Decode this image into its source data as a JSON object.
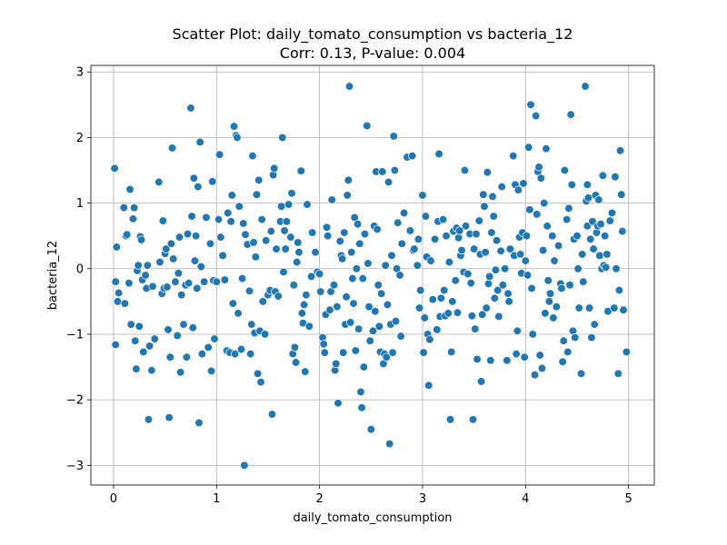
{
  "chart_data": {
    "type": "scatter",
    "title": "Scatter Plot: daily_tomato_consumption vs bacteria_12",
    "subtitle": "Corr: 0.13, P-value: 0.004",
    "xlabel": "daily_tomato_consumption",
    "ylabel": "bacteria_12",
    "xlim": [
      -0.22,
      5.25
    ],
    "ylim": [
      -3.3,
      3.1
    ],
    "xticks": [
      0,
      1,
      2,
      3,
      4,
      5
    ],
    "yticks": [
      -3,
      -2,
      -1,
      0,
      1,
      2,
      3
    ],
    "xtick_labels": [
      "0",
      "1",
      "2",
      "3",
      "4",
      "5"
    ],
    "ytick_labels": [
      "−3",
      "−2",
      "−1",
      "0",
      "1",
      "2",
      "3"
    ],
    "grid": true,
    "legend": "none",
    "point_color": "#1f77b4",
    "points": [
      [
        0.01,
        1.53
      ],
      [
        0.02,
        -0.2
      ],
      [
        0.03,
        0.33
      ],
      [
        0.02,
        -1.16
      ],
      [
        0.05,
        -0.37
      ],
      [
        0.04,
        -0.5
      ],
      [
        0.1,
        0.93
      ],
      [
        0.11,
        -0.53
      ],
      [
        0.12,
        0.5
      ],
      [
        0.13,
        0.52
      ],
      [
        0.15,
        -0.22
      ],
      [
        0.16,
        1.21
      ],
      [
        0.17,
        -0.85
      ],
      [
        0.19,
        0.76
      ],
      [
        0.2,
        0.93
      ],
      [
        0.21,
        -1.1
      ],
      [
        0.22,
        -1.53
      ],
      [
        0.23,
        -0.03
      ],
      [
        0.24,
        0.05
      ],
      [
        0.25,
        -0.88
      ],
      [
        0.26,
        0.49
      ],
      [
        0.27,
        0.44
      ],
      [
        0.28,
        -0.17
      ],
      [
        0.29,
        -1.27
      ],
      [
        0.31,
        -0.1
      ],
      [
        0.32,
        -0.3
      ],
      [
        0.33,
        0.05
      ],
      [
        0.34,
        -2.3
      ],
      [
        0.35,
        -1.18
      ],
      [
        0.37,
        -1.55
      ],
      [
        0.38,
        -0.27
      ],
      [
        0.4,
        -1.07
      ],
      [
        0.44,
        1.32
      ],
      [
        0.45,
        0.1
      ],
      [
        0.47,
        -0.38
      ],
      [
        0.48,
        0.73
      ],
      [
        0.49,
        -0.3
      ],
      [
        0.5,
        0.23
      ],
      [
        0.51,
        0.3
      ],
      [
        0.52,
        -0.28
      ],
      [
        0.53,
        -0.93
      ],
      [
        0.54,
        -2.27
      ],
      [
        0.55,
        -1.35
      ],
      [
        0.56,
        0.38
      ],
      [
        0.57,
        1.84
      ],
      [
        0.58,
        0.15
      ],
      [
        0.6,
        -0.2
      ],
      [
        0.62,
        -1.02
      ],
      [
        0.63,
        -0.07
      ],
      [
        0.64,
        0.48
      ],
      [
        0.65,
        -1.58
      ],
      [
        0.66,
        -0.4
      ],
      [
        0.68,
        -0.85
      ],
      [
        0.7,
        -0.25
      ],
      [
        0.71,
        -1.35
      ],
      [
        0.72,
        0.53
      ],
      [
        0.73,
        -0.22
      ],
      [
        0.75,
        2.45
      ],
      [
        0.76,
        0.8
      ],
      [
        0.77,
        -0.9
      ],
      [
        0.78,
        1.38
      ],
      [
        0.79,
        0.12
      ],
      [
        0.8,
        0.5
      ],
      [
        0.81,
        -0.3
      ],
      [
        0.82,
        1.25
      ],
      [
        0.83,
        -2.35
      ],
      [
        0.84,
        1.93
      ],
      [
        0.85,
        0.03
      ],
      [
        0.86,
        -1.3
      ],
      [
        0.88,
        -0.2
      ],
      [
        0.9,
        0.78
      ],
      [
        0.92,
        -1.2
      ],
      [
        0.94,
        0.38
      ],
      [
        0.95,
        -1.56
      ],
      [
        0.96,
        1.33
      ],
      [
        0.97,
        -0.18
      ],
      [
        0.98,
        -1.07
      ],
      [
        1.0,
        -0.2
      ],
      [
        1.02,
        0.75
      ],
      [
        1.03,
        1.74
      ],
      [
        1.04,
        0.48
      ],
      [
        1.06,
        0.2
      ],
      [
        1.08,
        -0.17
      ],
      [
        1.1,
        -1.25
      ],
      [
        1.11,
        0.85
      ],
      [
        1.13,
        -1.28
      ],
      [
        1.14,
        0.72
      ],
      [
        1.15,
        1.12
      ],
      [
        1.16,
        -0.53
      ],
      [
        1.17,
        2.17
      ],
      [
        1.18,
        -1.3
      ],
      [
        1.19,
        2.03
      ],
      [
        1.2,
        2.0
      ],
      [
        1.21,
        -0.68
      ],
      [
        1.22,
        0.95
      ],
      [
        1.24,
        -1.23
      ],
      [
        1.25,
        -0.15
      ],
      [
        1.26,
        0.69
      ],
      [
        1.27,
        -3.0
      ],
      [
        1.28,
        0.52
      ],
      [
        1.3,
        0.37
      ],
      [
        1.32,
        -0.34
      ],
      [
        1.33,
        -1.3
      ],
      [
        1.34,
        -0.85
      ],
      [
        1.35,
        1.72
      ],
      [
        1.36,
        0.4
      ],
      [
        1.37,
        -0.98
      ],
      [
        1.38,
        0.18
      ],
      [
        1.39,
        1.13
      ],
      [
        1.4,
        -1.6
      ],
      [
        1.41,
        1.35
      ],
      [
        1.42,
        -0.95
      ],
      [
        1.43,
        -1.73
      ],
      [
        1.44,
        0.75
      ],
      [
        1.45,
        -0.5
      ],
      [
        1.47,
        -1.0
      ],
      [
        1.48,
        0.43
      ],
      [
        1.5,
        -0.4
      ],
      [
        1.52,
        -0.33
      ],
      [
        1.53,
        0.57
      ],
      [
        1.54,
        -2.22
      ],
      [
        1.55,
        1.43
      ],
      [
        1.56,
        1.53
      ],
      [
        1.57,
        -0.35
      ],
      [
        1.58,
        0.3
      ],
      [
        1.6,
        -0.42
      ],
      [
        1.62,
        0.72
      ],
      [
        1.63,
        0.95
      ],
      [
        1.64,
        2.0
      ],
      [
        1.65,
        -0.05
      ],
      [
        1.66,
        0.58
      ],
      [
        1.67,
        0.3
      ],
      [
        1.68,
        0.72
      ],
      [
        1.7,
        0.98
      ],
      [
        1.72,
        0.48
      ],
      [
        1.73,
        1.15
      ],
      [
        1.74,
        -1.3
      ],
      [
        1.75,
        -0.25
      ],
      [
        1.76,
        -1.2
      ],
      [
        1.77,
        -1.43
      ],
      [
        1.78,
        0.1
      ],
      [
        1.79,
        0.4
      ],
      [
        1.8,
        0.25
      ],
      [
        1.82,
        1.49
      ],
      [
        1.83,
        -0.68
      ],
      [
        1.84,
        -0.83
      ],
      [
        1.85,
        -0.55
      ],
      [
        1.86,
        -1.57
      ],
      [
        1.87,
        -0.4
      ],
      [
        1.88,
        0.98
      ],
      [
        1.9,
        -0.88
      ],
      [
        1.92,
        -0.12
      ],
      [
        1.93,
        0.55
      ],
      [
        1.98,
        -0.05
      ],
      [
        2.0,
        -0.08
      ],
      [
        2.01,
        -0.35
      ],
      [
        2.03,
        -1.05
      ],
      [
        2.04,
        -1.15
      ],
      [
        2.05,
        -1.28
      ],
      [
        2.06,
        -0.7
      ],
      [
        2.07,
        0.63
      ],
      [
        2.08,
        0.5
      ],
      [
        2.1,
        -0.63
      ],
      [
        2.11,
        -0.35
      ],
      [
        2.12,
        1.05
      ],
      [
        2.14,
        -0.25
      ],
      [
        2.15,
        -1.55
      ],
      [
        2.16,
        -1.45
      ],
      [
        2.17,
        -0.58
      ],
      [
        2.18,
        -2.05
      ],
      [
        2.2,
        0.42
      ],
      [
        2.21,
        0.2
      ],
      [
        2.22,
        0.15
      ],
      [
        2.23,
        -1.28
      ],
      [
        2.24,
        0.55
      ],
      [
        2.25,
        -0.85
      ],
      [
        2.26,
        -0.43
      ],
      [
        2.27,
        1.12
      ],
      [
        2.28,
        1.35
      ],
      [
        2.29,
        2.78
      ],
      [
        2.3,
        -0.82
      ],
      [
        2.31,
        0.25
      ],
      [
        2.32,
        -0.15
      ],
      [
        2.33,
        -0.53
      ],
      [
        2.34,
        0.78
      ],
      [
        2.35,
        -1.25
      ],
      [
        2.36,
        0.0
      ],
      [
        2.37,
        0.68
      ],
      [
        2.38,
        -0.92
      ],
      [
        2.39,
        0.38
      ],
      [
        2.4,
        -1.88
      ],
      [
        2.41,
        -2.12
      ],
      [
        2.42,
        -0.15
      ],
      [
        2.43,
        -1.5
      ],
      [
        2.44,
        0.53
      ],
      [
        2.46,
        2.18
      ],
      [
        2.47,
        0.08
      ],
      [
        2.48,
        -0.58
      ],
      [
        2.49,
        -1.1
      ],
      [
        2.5,
        -2.45
      ],
      [
        2.52,
        -0.95
      ],
      [
        2.53,
        0.65
      ],
      [
        2.54,
        -0.65
      ],
      [
        2.55,
        1.48
      ],
      [
        2.57,
        -0.25
      ],
      [
        2.58,
        -0.88
      ],
      [
        2.59,
        -1.27
      ],
      [
        2.6,
        -0.38
      ],
      [
        2.61,
        1.48
      ],
      [
        2.62,
        -1.45
      ],
      [
        2.63,
        -1.3
      ],
      [
        2.64,
        0.05
      ],
      [
        2.65,
        -1.35
      ],
      [
        2.66,
        -0.55
      ],
      [
        2.67,
        1.32
      ],
      [
        2.68,
        -2.67
      ],
      [
        2.69,
        -0.85
      ],
      [
        2.7,
        0.2
      ],
      [
        2.71,
        -1.28
      ],
      [
        2.72,
        2.02
      ],
      [
        2.73,
        1.5
      ],
      [
        2.74,
        -0.8
      ],
      [
        2.75,
        0.0
      ],
      [
        2.76,
        0.7
      ],
      [
        2.78,
        -0.1
      ],
      [
        2.79,
        -1.03
      ],
      [
        2.8,
        0.38
      ],
      [
        2.82,
        0.85
      ],
      [
        2.85,
        1.7
      ],
      [
        2.88,
        0.58
      ],
      [
        2.9,
        1.72
      ],
      [
        2.91,
        0.28
      ],
      [
        2.92,
        0.3
      ],
      [
        2.95,
        0.05
      ],
      [
        2.96,
        0.45
      ],
      [
        2.97,
        -0.6
      ],
      [
        2.98,
        -0.33
      ],
      [
        3.0,
        1.12
      ],
      [
        3.01,
        -1.28
      ],
      [
        3.02,
        -0.75
      ],
      [
        3.03,
        0.8
      ],
      [
        3.04,
        0.18
      ],
      [
        3.05,
        -1.0
      ],
      [
        3.06,
        -1.78
      ],
      [
        3.07,
        -1.08
      ],
      [
        3.08,
        0.12
      ],
      [
        3.1,
        -0.47
      ],
      [
        3.12,
        0.45
      ],
      [
        3.14,
        -0.93
      ],
      [
        3.15,
        0.72
      ],
      [
        3.16,
        1.75
      ],
      [
        3.17,
        -0.73
      ],
      [
        3.18,
        -0.45
      ],
      [
        3.2,
        0.75
      ],
      [
        3.21,
        -0.33
      ],
      [
        3.22,
        -0.72
      ],
      [
        3.23,
        0.5
      ],
      [
        3.25,
        -0.68
      ],
      [
        3.26,
        0.1
      ],
      [
        3.27,
        -2.3
      ],
      [
        3.28,
        -1.27
      ],
      [
        3.29,
        -0.5
      ],
      [
        3.3,
        0.57
      ],
      [
        3.32,
        -0.18
      ],
      [
        3.33,
        0.62
      ],
      [
        3.34,
        -0.67
      ],
      [
        3.35,
        0.47
      ],
      [
        3.36,
        0.58
      ],
      [
        3.37,
        0.2
      ],
      [
        3.38,
        0.28
      ],
      [
        3.4,
        -0.05
      ],
      [
        3.41,
        1.5
      ],
      [
        3.42,
        0.65
      ],
      [
        3.44,
        -0.08
      ],
      [
        3.46,
        0.53
      ],
      [
        3.47,
        -0.22
      ],
      [
        3.48,
        -0.72
      ],
      [
        3.49,
        -2.3
      ],
      [
        3.5,
        0.3
      ],
      [
        3.51,
        -0.92
      ],
      [
        3.52,
        0.53
      ],
      [
        3.53,
        -1.38
      ],
      [
        3.55,
        0.73
      ],
      [
        3.56,
        0.22
      ],
      [
        3.57,
        -1.72
      ],
      [
        3.58,
        -0.7
      ],
      [
        3.59,
        1.13
      ],
      [
        3.6,
        0.95
      ],
      [
        3.61,
        0.25
      ],
      [
        3.62,
        -0.6
      ],
      [
        3.63,
        1.47
      ],
      [
        3.64,
        -0.23
      ],
      [
        3.65,
        -0.12
      ],
      [
        3.66,
        -1.4
      ],
      [
        3.67,
        0.55
      ],
      [
        3.68,
        1.1
      ],
      [
        3.69,
        0.8
      ],
      [
        3.7,
        -0.45
      ],
      [
        3.71,
        -0.02
      ],
      [
        3.72,
        0.43
      ],
      [
        3.73,
        -0.33
      ],
      [
        3.74,
        -0.73
      ],
      [
        3.76,
        0.27
      ],
      [
        3.77,
        1.25
      ],
      [
        3.78,
        -0.25
      ],
      [
        3.8,
        0.0
      ],
      [
        3.82,
        -1.4
      ],
      [
        3.83,
        -0.38
      ],
      [
        3.84,
        -0.5
      ],
      [
        3.86,
        0.3
      ],
      [
        3.88,
        1.72
      ],
      [
        3.89,
        0.2
      ],
      [
        3.9,
        1.28
      ],
      [
        3.91,
        -1.3
      ],
      [
        3.92,
        -0.95
      ],
      [
        3.93,
        1.2
      ],
      [
        3.94,
        0.48
      ],
      [
        3.95,
        0.22
      ],
      [
        3.96,
        -0.07
      ],
      [
        3.97,
        0.55
      ],
      [
        3.98,
        1.3
      ],
      [
        3.99,
        -1.35
      ],
      [
        4.0,
        0.12
      ],
      [
        4.01,
        0.5
      ],
      [
        4.02,
        -0.1
      ],
      [
        4.03,
        1.85
      ],
      [
        4.04,
        0.9
      ],
      [
        4.05,
        2.5
      ],
      [
        4.06,
        -0.3
      ],
      [
        4.07,
        -1.0
      ],
      [
        4.09,
        -1.62
      ],
      [
        4.1,
        2.33
      ],
      [
        4.11,
        0.83
      ],
      [
        4.12,
        1.48
      ],
      [
        4.13,
        1.55
      ],
      [
        4.14,
        -1.32
      ],
      [
        4.15,
        1.38
      ],
      [
        4.16,
        -1.52
      ],
      [
        4.17,
        0.28
      ],
      [
        4.18,
        1.0
      ],
      [
        4.19,
        -0.68
      ],
      [
        4.2,
        1.83
      ],
      [
        4.22,
        -0.18
      ],
      [
        4.23,
        -0.5
      ],
      [
        4.24,
        -0.38
      ],
      [
        4.26,
        0.5
      ],
      [
        4.27,
        -0.75
      ],
      [
        4.28,
        0.12
      ],
      [
        4.3,
        -0.58
      ],
      [
        4.32,
        0.35
      ],
      [
        4.34,
        -0.23
      ],
      [
        4.35,
        -0.3
      ],
      [
        4.36,
        -1.42
      ],
      [
        4.37,
        -1.1
      ],
      [
        4.38,
        1.5
      ],
      [
        4.4,
        0.75
      ],
      [
        4.41,
        -1.27
      ],
      [
        4.42,
        0.92
      ],
      [
        4.43,
        -0.25
      ],
      [
        4.44,
        2.35
      ],
      [
        4.45,
        1.28
      ],
      [
        4.46,
        -0.95
      ],
      [
        4.47,
        0.45
      ],
      [
        4.48,
        -1.05
      ],
      [
        4.5,
        0.5
      ],
      [
        4.51,
        0.0
      ],
      [
        4.52,
        -0.6
      ],
      [
        4.54,
        -1.6
      ],
      [
        4.55,
        0.22
      ],
      [
        4.56,
        -0.2
      ],
      [
        4.58,
        2.78
      ],
      [
        4.59,
        1.03
      ],
      [
        4.6,
        0.65
      ],
      [
        4.61,
        1.08
      ],
      [
        4.62,
        -0.6
      ],
      [
        4.63,
        0.45
      ],
      [
        4.64,
        -1.05
      ],
      [
        4.65,
        0.72
      ],
      [
        4.66,
        0.3
      ],
      [
        4.67,
        -0.85
      ],
      [
        4.68,
        1.12
      ],
      [
        4.69,
        0.55
      ],
      [
        4.7,
        0.65
      ],
      [
        4.71,
        1.05
      ],
      [
        4.72,
        0.2
      ],
      [
        4.73,
        0.68
      ],
      [
        4.74,
        0.0
      ],
      [
        4.75,
        1.42
      ],
      [
        4.76,
        0.05
      ],
      [
        4.77,
        0.5
      ],
      [
        4.78,
        0.02
      ],
      [
        4.79,
        0.22
      ],
      [
        4.8,
        -0.65
      ],
      [
        4.82,
        0.73
      ],
      [
        4.84,
        0.85
      ],
      [
        4.86,
        -0.6
      ],
      [
        4.87,
        1.4
      ],
      [
        4.88,
        0.0
      ],
      [
        4.9,
        -1.6
      ],
      [
        4.91,
        -0.33
      ],
      [
        4.92,
        1.8
      ],
      [
        4.93,
        1.13
      ],
      [
        4.94,
        0.57
      ],
      [
        4.95,
        -0.63
      ],
      [
        4.98,
        -1.27
      ],
      [
        4.6,
        1.28
      ],
      [
        4.21,
        0.65
      ],
      [
        3.85,
        0.3
      ],
      [
        2.56,
        0.6
      ],
      [
        1.96,
        0.25
      ]
    ]
  }
}
